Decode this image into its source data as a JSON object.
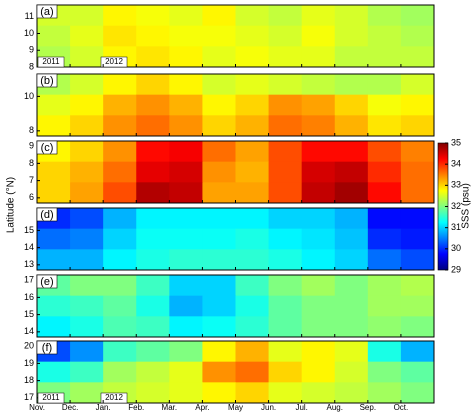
{
  "figure": {
    "ylabel": "Latitude (°N)",
    "categories": [
      "Nov.",
      "Dec.",
      "Jan.",
      "Feb.",
      "Mar.",
      "Apr.",
      "May",
      "Jun.",
      "Jul.",
      "Aug.",
      "Sep.",
      "Oct."
    ],
    "colorbar": {
      "label": "SSS (psu)",
      "lim": [
        29,
        35
      ],
      "ticks": [
        29,
        30,
        31,
        32,
        33,
        34,
        35
      ]
    }
  },
  "chart_data": [
    {
      "type": "heatmap",
      "title": "(a)",
      "ylim": [
        8,
        11.7
      ],
      "yticks": [
        8,
        9,
        10,
        11
      ],
      "annotations": [
        "2011",
        "2012"
      ],
      "values": [
        [
          32.5,
          32.5,
          32.8,
          32.7,
          32.6,
          32.8,
          32.5,
          32.4,
          32.6,
          32.5,
          32.3,
          32.2
        ],
        [
          32.4,
          32.6,
          32.9,
          32.8,
          32.7,
          32.7,
          32.6,
          32.5,
          32.7,
          32.5,
          32.4,
          32.3
        ],
        [
          32.3,
          32.5,
          32.8,
          32.9,
          32.8,
          32.6,
          32.7,
          32.6,
          32.6,
          32.4,
          32.4,
          32.4
        ]
      ]
    },
    {
      "type": "heatmap",
      "title": "(b)",
      "ylim": [
        7.7,
        11.3
      ],
      "yticks": [
        8,
        10
      ],
      "values": [
        [
          32.3,
          32.5,
          32.8,
          33,
          32.8,
          32.5,
          32.6,
          32.5,
          32.4,
          32.3,
          32.3,
          32.5
        ],
        [
          32.6,
          32.8,
          33.2,
          33.4,
          33.2,
          32.8,
          33,
          33.4,
          33.3,
          33,
          32.7,
          32.8
        ],
        [
          32.8,
          33,
          33.4,
          33.6,
          33.4,
          33,
          33.2,
          33.6,
          33.5,
          33.2,
          32.9,
          33
        ]
      ]
    },
    {
      "type": "heatmap",
      "title": "(c)",
      "ylim": [
        5.7,
        9.3
      ],
      "yticks": [
        6,
        7,
        8,
        9
      ],
      "values": [
        [
          32.8,
          33,
          33.4,
          34.2,
          34.3,
          33.6,
          33.3,
          33.8,
          34.2,
          34.2,
          33.8,
          33.5
        ],
        [
          33,
          33.2,
          33.6,
          34.4,
          34.5,
          33.4,
          33.2,
          33.8,
          34.5,
          34.6,
          34,
          33.6
        ],
        [
          33,
          33.3,
          33.8,
          34.7,
          34.6,
          33.3,
          33.3,
          33.8,
          34.6,
          34.8,
          34.2,
          33.6
        ]
      ]
    },
    {
      "type": "heatmap",
      "title": "(d)",
      "ylim": [
        12.7,
        16.3
      ],
      "yticks": [
        13,
        14,
        15
      ],
      "values": [
        [
          30,
          30.2,
          30.8,
          31.2,
          31.2,
          31.2,
          31.2,
          31,
          31,
          30.8,
          29.8,
          29.8
        ],
        [
          30.4,
          30.5,
          31,
          31.3,
          31.3,
          31.3,
          31.4,
          31.2,
          31.1,
          30.9,
          30,
          29.9
        ],
        [
          30.8,
          30.8,
          31.2,
          31.4,
          31.5,
          31.5,
          31.5,
          31.4,
          31.2,
          31,
          30.4,
          30.2
        ]
      ]
    },
    {
      "type": "heatmap",
      "title": "(e)",
      "ylim": [
        13.7,
        17.3
      ],
      "yticks": [
        14,
        15,
        16,
        17
      ],
      "values": [
        [
          31.8,
          32,
          32,
          31.6,
          31,
          31,
          31.6,
          32,
          32.2,
          32,
          32.2,
          32.3
        ],
        [
          31.5,
          31.6,
          31.8,
          31.4,
          30.8,
          31,
          31.4,
          31.8,
          32,
          32,
          32.2,
          32.2
        ],
        [
          31.2,
          31.4,
          31.7,
          31.6,
          31.2,
          31.3,
          31.5,
          31.8,
          32,
          32,
          32.1,
          32
        ]
      ]
    },
    {
      "type": "heatmap",
      "title": "(f)",
      "ylim": [
        16.7,
        20.3
      ],
      "yticks": [
        17,
        18,
        19,
        20
      ],
      "annotations": [
        "2011",
        "2012"
      ],
      "values": [
        [
          30.2,
          30.6,
          31.6,
          31.8,
          32,
          32.8,
          33.2,
          32.6,
          32.8,
          32.6,
          31.4,
          30.8
        ],
        [
          31.4,
          31.6,
          32.2,
          32.4,
          32.6,
          33.4,
          33.6,
          33,
          32.8,
          32.5,
          32,
          31.8
        ],
        [
          32,
          32.2,
          32.4,
          32.5,
          32.6,
          32.8,
          33,
          32.6,
          32.5,
          32.4,
          32.2,
          32
        ]
      ]
    }
  ]
}
